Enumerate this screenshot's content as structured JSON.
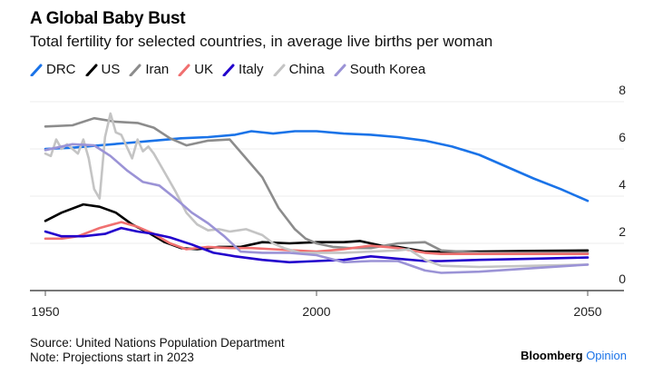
{
  "header": {
    "title": "A Global Baby Bust",
    "subtitle": "Total fertility for selected countries, in average live births per woman"
  },
  "footer": {
    "source": "Source: United Nations Population Department",
    "note": "Note: Projections start in 2023",
    "brand_main": "Bloomberg",
    "brand_accent": "Opinion"
  },
  "chart_data": {
    "type": "line",
    "title": "A Global Baby Bust",
    "subtitle": "Total fertility for selected countries, in average live births per woman",
    "xlabel": "",
    "ylabel": "",
    "xlim": [
      1950,
      2050
    ],
    "ylim": [
      0,
      8
    ],
    "x_ticks": [
      1950,
      2000,
      2050
    ],
    "y_ticks": [
      0,
      2,
      4,
      6,
      8
    ],
    "y_axis_side": "right",
    "grid": "horizontal",
    "legend_position": "top-left",
    "projection_start": 2023,
    "series": [
      {
        "name": "DRC",
        "color": "#1a73e8",
        "x": [
          1950,
          1955,
          1960,
          1965,
          1970,
          1975,
          1980,
          1985,
          1988,
          1992,
          1996,
          2000,
          2005,
          2010,
          2015,
          2020,
          2025,
          2030,
          2035,
          2040,
          2045,
          2050
        ],
        "y": [
          6.0,
          6.05,
          6.15,
          6.25,
          6.35,
          6.45,
          6.5,
          6.6,
          6.75,
          6.65,
          6.75,
          6.75,
          6.65,
          6.6,
          6.5,
          6.35,
          6.1,
          5.75,
          5.25,
          4.75,
          4.3,
          3.8
        ]
      },
      {
        "name": "US",
        "color": "#000000",
        "x": [
          1950,
          1953,
          1957,
          1960,
          1963,
          1966,
          1969,
          1972,
          1975,
          1978,
          1982,
          1986,
          1990,
          1995,
          2000,
          2005,
          2008,
          2012,
          2015,
          2020,
          2023,
          2030,
          2040,
          2050
        ],
        "y": [
          2.95,
          3.3,
          3.65,
          3.55,
          3.3,
          2.8,
          2.45,
          2.05,
          1.8,
          1.75,
          1.85,
          1.85,
          2.05,
          2.0,
          2.05,
          2.05,
          2.1,
          1.9,
          1.85,
          1.65,
          1.65,
          1.65,
          1.68,
          1.7
        ]
      },
      {
        "name": "Iran",
        "color": "#8c8c8c",
        "x": [
          1950,
          1955,
          1959,
          1963,
          1967,
          1970,
          1973,
          1976,
          1980,
          1984,
          1987,
          1990,
          1993,
          1996,
          1998,
          2000,
          2003,
          2006,
          2010,
          2015,
          2020,
          2023,
          2030,
          2040,
          2050
        ],
        "y": [
          6.95,
          7.0,
          7.3,
          7.15,
          7.1,
          6.9,
          6.45,
          6.15,
          6.35,
          6.4,
          5.6,
          4.8,
          3.5,
          2.6,
          2.2,
          2.0,
          1.85,
          1.8,
          1.8,
          2.0,
          2.05,
          1.7,
          1.6,
          1.6,
          1.6
        ]
      },
      {
        "name": "UK",
        "color": "#f07070",
        "x": [
          1950,
          1953,
          1956,
          1960,
          1964,
          1967,
          1970,
          1973,
          1976,
          1980,
          1984,
          1988,
          1992,
          1996,
          2000,
          2005,
          2010,
          2015,
          2020,
          2023,
          2030,
          2040,
          2050
        ],
        "y": [
          2.2,
          2.2,
          2.3,
          2.65,
          2.9,
          2.7,
          2.4,
          2.0,
          1.75,
          1.85,
          1.8,
          1.8,
          1.75,
          1.7,
          1.65,
          1.75,
          1.9,
          1.8,
          1.6,
          1.55,
          1.55,
          1.55,
          1.55
        ]
      },
      {
        "name": "Italy",
        "color": "#2200cc",
        "x": [
          1950,
          1953,
          1957,
          1961,
          1964,
          1967,
          1970,
          1973,
          1977,
          1981,
          1985,
          1990,
          1995,
          2000,
          2005,
          2010,
          2015,
          2020,
          2023,
          2030,
          2040,
          2050
        ],
        "y": [
          2.5,
          2.3,
          2.3,
          2.4,
          2.65,
          2.5,
          2.4,
          2.25,
          1.95,
          1.6,
          1.45,
          1.3,
          1.2,
          1.25,
          1.3,
          1.45,
          1.35,
          1.25,
          1.25,
          1.3,
          1.35,
          1.4
        ]
      },
      {
        "name": "China",
        "color": "#c4c4c4",
        "x": [
          1950,
          1951,
          1952,
          1953,
          1954,
          1955,
          1956,
          1957,
          1958,
          1959,
          1960,
          1961,
          1962,
          1963,
          1964,
          1965,
          1966,
          1967,
          1968,
          1969,
          1970,
          1972,
          1974,
          1976,
          1978,
          1980,
          1982,
          1984,
          1987,
          1990,
          1992,
          1994,
          1997,
          2000,
          2005,
          2010,
          2015,
          2017,
          2020,
          2023,
          2030,
          2040,
          2050
        ],
        "y": [
          5.8,
          5.7,
          6.4,
          6.0,
          6.2,
          6.0,
          5.8,
          6.4,
          5.6,
          4.3,
          3.9,
          6.5,
          7.5,
          6.7,
          6.6,
          6.1,
          5.6,
          6.4,
          5.9,
          6.1,
          5.8,
          5.0,
          4.2,
          3.3,
          2.8,
          2.55,
          2.6,
          2.5,
          2.6,
          2.35,
          2.0,
          1.8,
          1.6,
          1.6,
          1.6,
          1.65,
          1.7,
          1.75,
          1.3,
          1.05,
          1.0,
          1.05,
          1.1
        ]
      },
      {
        "name": "South Korea",
        "color": "#9b93d6",
        "x": [
          1950,
          1955,
          1959,
          1962,
          1965,
          1968,
          1971,
          1974,
          1977,
          1980,
          1983,
          1986,
          1990,
          1995,
          2000,
          2005,
          2010,
          2015,
          2020,
          2023,
          2030,
          2040,
          2050
        ],
        "y": [
          5.95,
          6.2,
          6.15,
          5.7,
          5.1,
          4.6,
          4.45,
          3.9,
          3.3,
          2.85,
          2.3,
          1.65,
          1.6,
          1.6,
          1.5,
          1.2,
          1.25,
          1.25,
          0.85,
          0.75,
          0.8,
          0.95,
          1.1
        ]
      }
    ]
  }
}
